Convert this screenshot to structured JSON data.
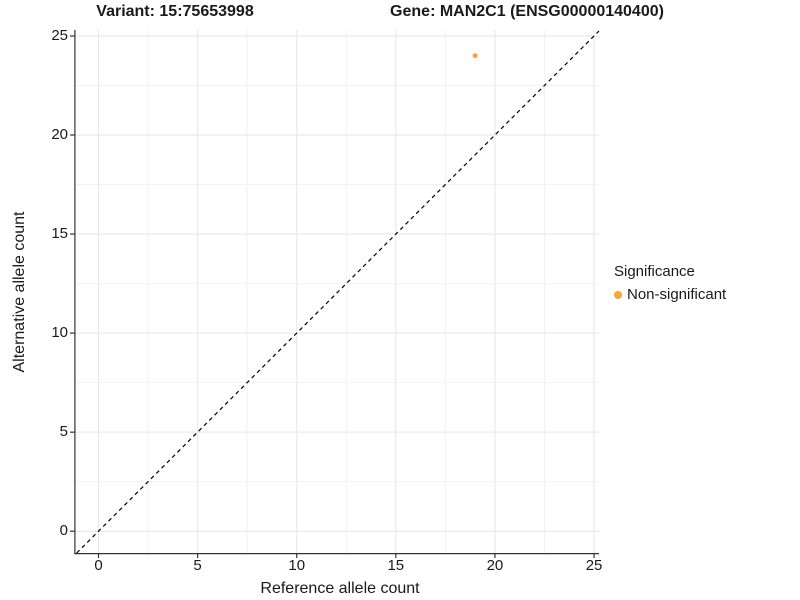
{
  "titles": {
    "variant": "Variant: 15:75653998",
    "gene": "Gene: MAN2C1 (ENSG00000140400)"
  },
  "colors": {
    "point": "#FAA43A",
    "grid_major": "#E6E6E6",
    "grid_minor": "#F2F2F2",
    "axis_line": "#333333",
    "identity_line": "#000000",
    "text": "#1a1a1a",
    "background": "#FFFFFF"
  },
  "chart_data": {
    "type": "scatter",
    "title_left": "Variant: 15:75653998",
    "title_right": "Gene: MAN2C1 (ENSG00000140400)",
    "xlabel": "Reference allele count",
    "ylabel": "Alternative allele count",
    "xlim": [
      -1.16,
      25.25
    ],
    "ylim": [
      -1.1,
      25.3
    ],
    "x_ticks": [
      0,
      5,
      10,
      15,
      20,
      25
    ],
    "y_ticks": [
      0,
      5,
      10,
      15,
      20,
      25
    ],
    "x_minor_ticks": [
      2.5,
      7.5,
      12.5,
      17.5,
      22.5
    ],
    "y_minor_ticks": [
      2.5,
      7.5,
      12.5,
      17.5,
      22.5
    ],
    "grid": true,
    "reference_line": {
      "type": "identity",
      "equation": "y = x",
      "style": "dashed",
      "color": "#000000"
    },
    "points": [
      {
        "x": 19,
        "y": 24,
        "series": "Non-significant"
      }
    ],
    "legend": {
      "position": "right",
      "title": "Significance",
      "items": [
        {
          "label": "Non-significant",
          "color": "#FAA43A"
        }
      ]
    }
  }
}
